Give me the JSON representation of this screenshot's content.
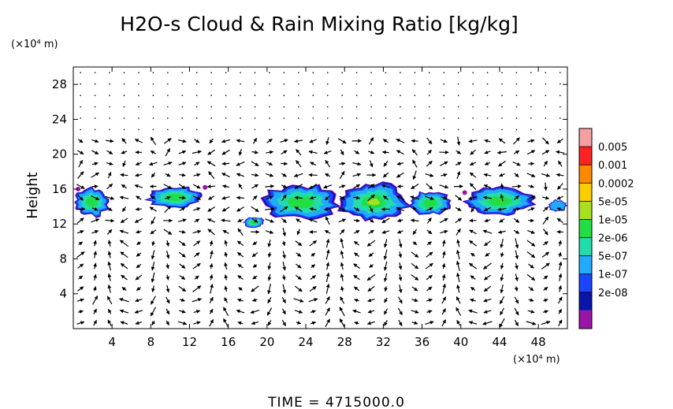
{
  "chart_data": {
    "type": "contour",
    "title": "H2O-s Cloud & Rain Mixing Ratio [kg/kg]",
    "ylabel": "Height",
    "y_unit": "(×10⁴ m)",
    "x_unit": "(×10⁴ m)",
    "xlim": [
      0,
      51
    ],
    "ylim": [
      0,
      30
    ],
    "x_ticks": [
      "4",
      "8",
      "12",
      "16",
      "20",
      "24",
      "28",
      "32",
      "36",
      "40",
      "44",
      "48"
    ],
    "y_ticks": [
      "4",
      "8",
      "12",
      "16",
      "20",
      "24",
      "28"
    ],
    "time_label": "TIME  =  4715000.0",
    "colorbar": {
      "levels": [
        "0.005",
        "0.001",
        "0.0002",
        "5e-05",
        "1e-05",
        "2e-06",
        "5e-07",
        "1e-07",
        "2e-08"
      ],
      "colors": [
        "#f4a0a0",
        "#ff2222",
        "#ff8800",
        "#ffcc00",
        "#a8e020",
        "#22dd44",
        "#22ddaa",
        "#22aaff",
        "#1a44ff",
        "#0a14aa",
        "#9a14a8"
      ]
    },
    "cloud_regions": [
      {
        "x": [
          0,
          3.8
        ],
        "y": [
          12.8,
          16.2
        ],
        "peak": "5e-06"
      },
      {
        "x": [
          7.5,
          13.5
        ],
        "y": [
          13.8,
          16.3
        ],
        "peak": "5e-06"
      },
      {
        "x": [
          17.5,
          19.8
        ],
        "y": [
          11.6,
          12.8
        ],
        "peak": "5e-06"
      },
      {
        "x": [
          19.5,
          27.5
        ],
        "y": [
          12.4,
          16.6
        ],
        "peak": "5e-06"
      },
      {
        "x": [
          27,
          35
        ],
        "y": [
          12.2,
          16.8
        ],
        "peak": "1e-05"
      },
      {
        "x": [
          34.5,
          39
        ],
        "y": [
          13,
          15.8
        ],
        "peak": "5e-06"
      },
      {
        "x": [
          40.5,
          47.5
        ],
        "y": [
          13,
          16.2
        ],
        "peak": "5e-06"
      },
      {
        "x": [
          49,
          51
        ],
        "y": [
          13.4,
          14.8
        ],
        "peak": "5e-07"
      }
    ],
    "wind_vectors": "vector field shown as arrows on a regular grid"
  }
}
